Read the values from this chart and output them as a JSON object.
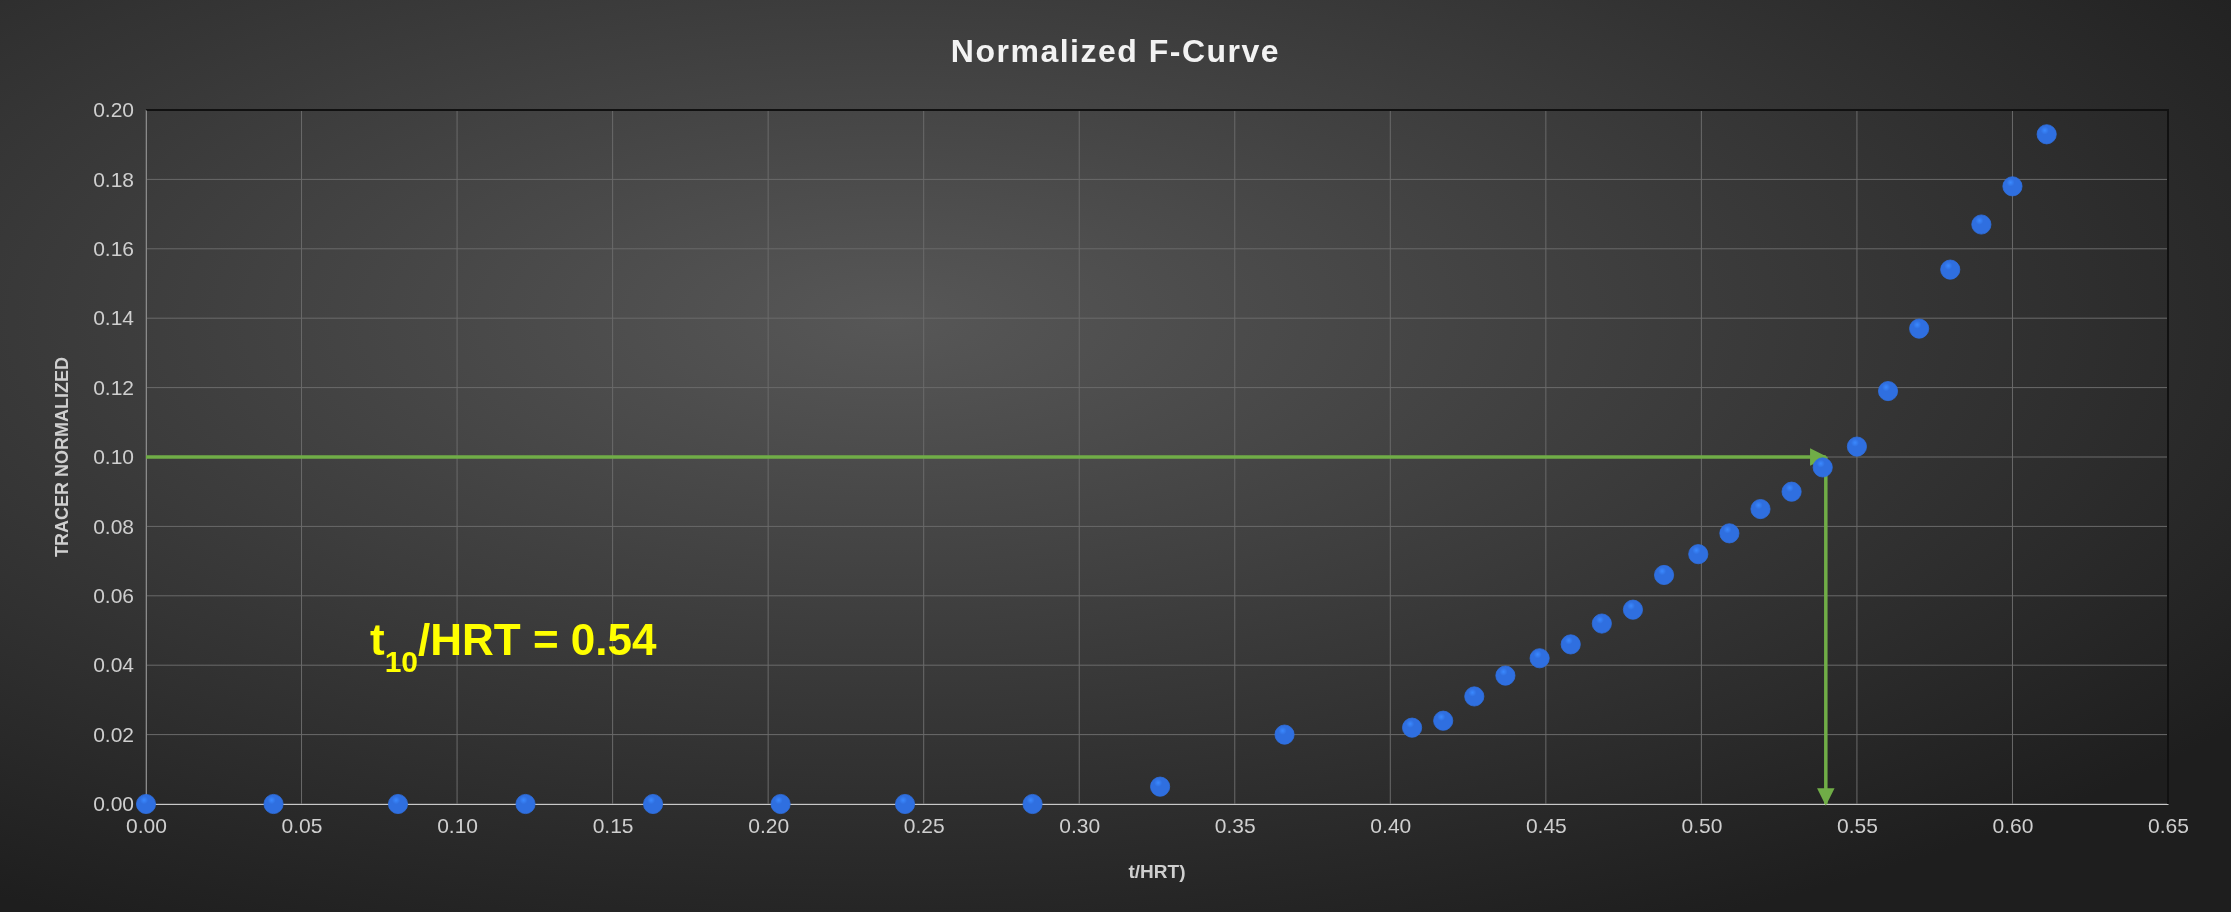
{
  "chart_data": {
    "type": "scatter",
    "title": "Normalized F-Curve",
    "xlabel": "t/HRT)",
    "ylabel": "TRACER NORMALIZED",
    "x": [
      0,
      0.041,
      0.081,
      0.122,
      0.163,
      0.204,
      0.244,
      0.285,
      0.326,
      0.366,
      0.407,
      0.417,
      0.427,
      0.437,
      0.448,
      0.458,
      0.468,
      0.478,
      0.488,
      0.499,
      0.509,
      0.519,
      0.529,
      0.539,
      0.55,
      0.56,
      0.57,
      0.58,
      0.59,
      0.6,
      0.611
    ],
    "series": [
      {
        "color": "#2f6fe0",
        "values": [
          0,
          0,
          0,
          0,
          0,
          0,
          0,
          0,
          0.005,
          0.02,
          0.022,
          0.024,
          0.031,
          0.037,
          0.042,
          0.046,
          0.052,
          0.056,
          0.066,
          0.072,
          0.078,
          0.085,
          0.09,
          0.097,
          0.103,
          0.119,
          0.137,
          0.154,
          0.167,
          0.178,
          0.193
        ]
      }
    ],
    "xlim": [
      0,
      0.65
    ],
    "xticks": [
      {
        "value": 0,
        "label": "0.00"
      },
      0.05,
      {
        "value": 0.1,
        "label": "0.10"
      },
      0.15,
      {
        "value": 0.2,
        "label": "0.20"
      },
      0.25,
      {
        "value": 0.3,
        "label": "0.30"
      },
      0.35,
      {
        "value": 0.4,
        "label": "0.40"
      },
      0.45,
      {
        "value": 0.5,
        "label": "0.50"
      },
      0.55,
      {
        "value": 0.6,
        "label": "0.60"
      },
      0.65
    ],
    "ylim": [
      0,
      0.2
    ],
    "yticks": [
      {
        "value": 0,
        "label": "0.00"
      },
      0.02,
      0.04,
      0.06,
      0.08,
      {
        "value": 0.1,
        "label": "0.10"
      },
      0.12,
      0.14,
      0.16,
      0.18,
      {
        "value": 0.2,
        "label": "0.20"
      }
    ],
    "ref_lines": [
      {
        "axis": "y",
        "value": 0.1,
        "color": "#70ad47"
      },
      {
        "axis": "x",
        "value": 0.54,
        "color": "#70ad47"
      }
    ],
    "annotations": [
      "t$_{10}$/HRT = 0.54"
    ],
    "grid": true,
    "marker": "circle"
  }
}
